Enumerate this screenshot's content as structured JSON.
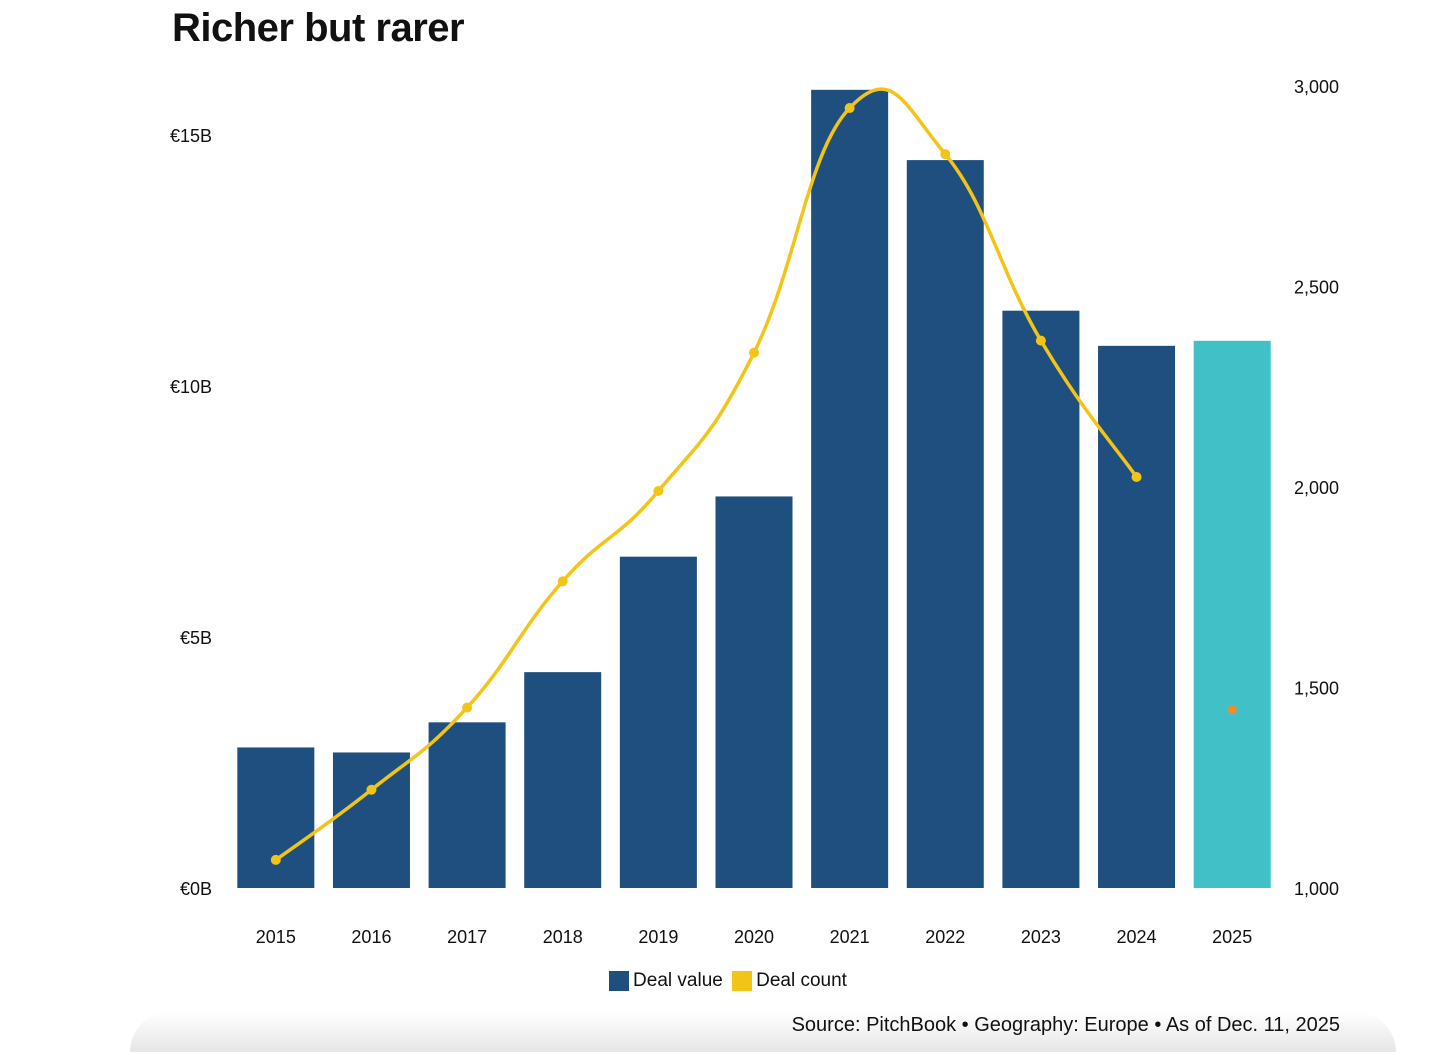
{
  "title": "Richer but rarer",
  "colors": {
    "deal_value": "#1f4f7f",
    "deal_value_2025": "#41c1c7",
    "deal_count": "#f2c418",
    "deal_count_2025": "#f08c2a"
  },
  "chart_data": {
    "type": "bar",
    "categories": [
      "2015",
      "2016",
      "2017",
      "2018",
      "2019",
      "2020",
      "2021",
      "2022",
      "2023",
      "2024",
      "2025"
    ],
    "series": [
      {
        "name": "Deal value",
        "axis": "left",
        "unit": "€B",
        "values": [
          2.8,
          2.7,
          3.3,
          4.3,
          6.6,
          7.8,
          15.9,
          14.5,
          11.5,
          10.8,
          10.9
        ]
      },
      {
        "name": "Deal count",
        "type": "line",
        "axis": "right",
        "values": [
          1070,
          1245,
          1450,
          1765,
          1990,
          2335,
          2945,
          2830,
          2365,
          2025,
          1445
        ]
      }
    ],
    "y_left": {
      "ticks": [
        "€0B",
        "€5B",
        "€10B",
        "€15B"
      ],
      "tick_values": [
        0,
        5,
        10,
        15
      ],
      "ylim": [
        0,
        16
      ]
    },
    "y_right": {
      "ticks": [
        "1,000",
        "1,500",
        "2,000",
        "2,500",
        "3,000"
      ],
      "tick_values": [
        1000,
        1500,
        2000,
        2500,
        3000
      ],
      "ylim": [
        1000,
        3000
      ]
    },
    "legend": [
      "Deal value",
      "Deal count"
    ],
    "legend_position": "bottom-center"
  },
  "source": "Source: PitchBook • Geography: Europe • As of Dec. 11, 2025"
}
